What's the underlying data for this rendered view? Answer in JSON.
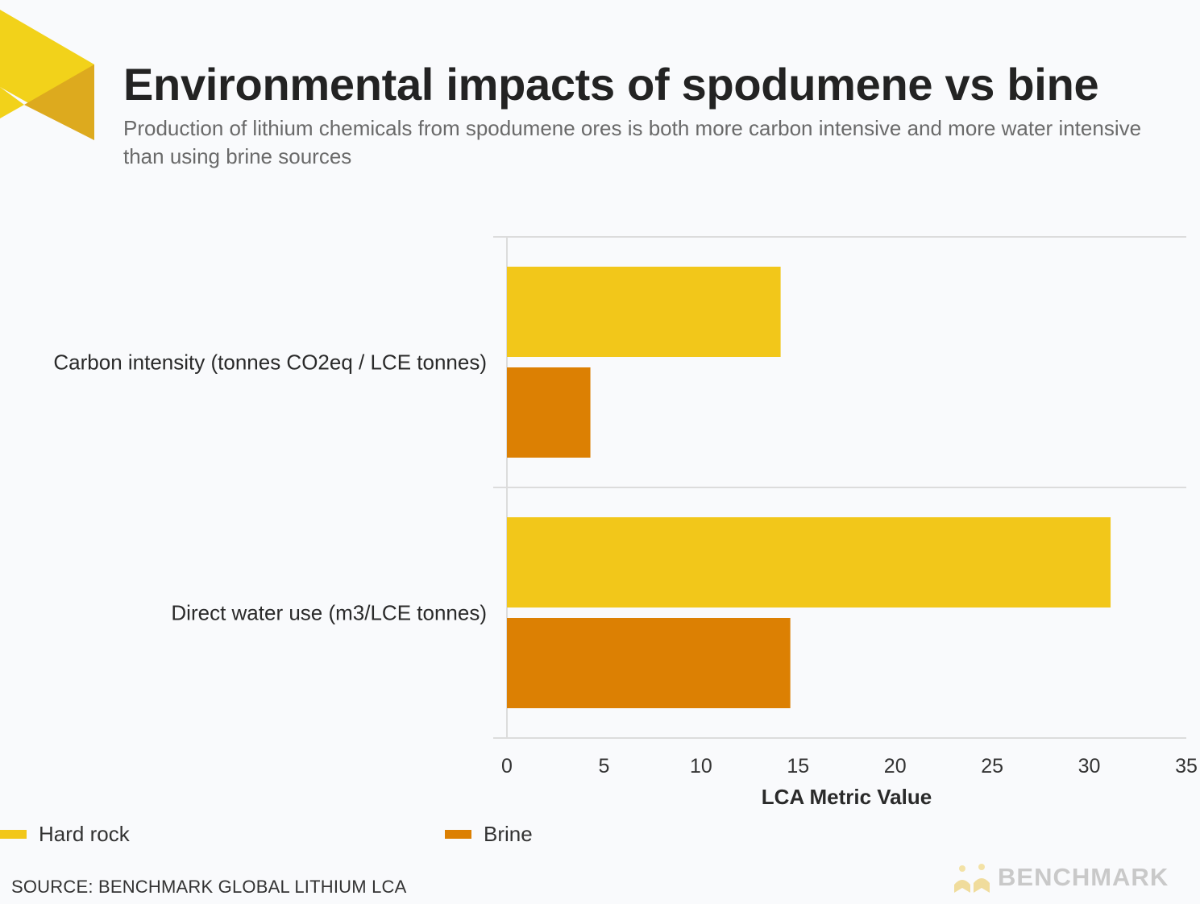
{
  "header": {
    "title": "Environmental impacts of spodumene vs bine",
    "subtitle": "Production of lithium chemicals from spodumene ores is both more carbon intensive and more water intensive than using brine sources"
  },
  "colors": {
    "hard_rock": "#f2c71a",
    "brine": "#dc8003",
    "grid": "#dcdcdc",
    "logo_light": "#f2d21a",
    "logo_dark": "#ddaa1e"
  },
  "chart_data": {
    "type": "bar",
    "orientation": "horizontal",
    "categories": [
      "Carbon intensity (tonnes CO2eq / LCE tonnes)",
      "Direct water use (m3/LCE tonnes)"
    ],
    "series": [
      {
        "name": "Hard rock",
        "values": [
          14.1,
          31.1
        ]
      },
      {
        "name": "Brine",
        "values": [
          4.3,
          14.6
        ]
      }
    ],
    "xlabel": "LCA Metric Value",
    "xlim": [
      0,
      35
    ],
    "xticks": [
      0,
      5,
      10,
      15,
      20,
      25,
      30,
      35
    ],
    "legend_position": "bottom"
  },
  "legend": {
    "hard_rock": "Hard rock",
    "brine": "Brine"
  },
  "footer": {
    "source": "SOURCE: BENCHMARK GLOBAL LITHIUM LCA",
    "brand": "BENCHMARK"
  },
  "icons": {
    "brand_logo": "benchmark-logo-icon",
    "corner_logo": "corner-chevron-icon"
  }
}
